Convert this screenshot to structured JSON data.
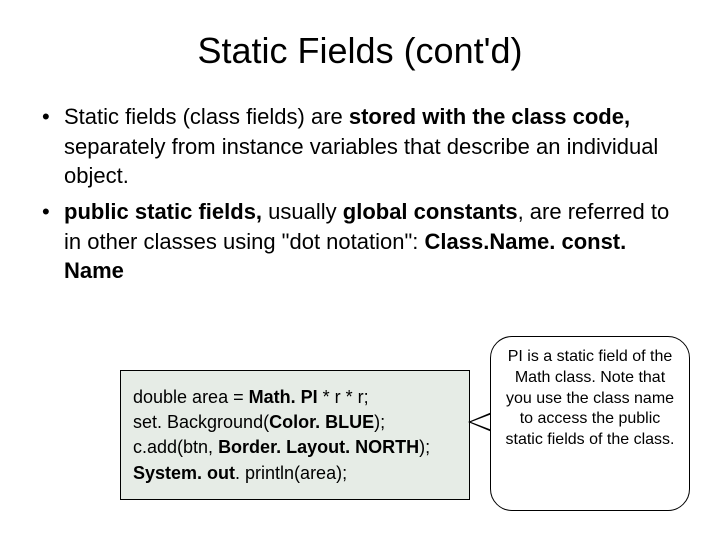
{
  "title": "Static Fields (cont'd)",
  "bullets": [
    {
      "pre": "Static fields (class fields) are ",
      "bold1": "stored with the class code,",
      "mid": " separately from instance variables that describe an individual object.",
      "bold2": "",
      "post": ""
    },
    {
      "pre": "",
      "bold1": "public static fields,",
      "mid": " usually ",
      "bold2": "global constants",
      "post": ", are referred to in other classes using \"dot notation\": ",
      "bold3": "Class.Name. const. Name"
    }
  ],
  "code": {
    "l1a": "double area = ",
    "l1b": "Math. PI",
    "l1c": " * r * r;",
    "l2a": "set. Background(",
    "l2b": "Color. BLUE",
    "l2c": ");",
    "l3a": "c.add(btn, ",
    "l3b": "Border. Layout. NORTH",
    "l3c": ");",
    "l4a": "System. out",
    "l4b": ". println(area);"
  },
  "callout": "PI is a static field of the Math class. Note that you use the class name to access the public static fields of the class.",
  "style": {
    "background": "#ffffff",
    "codebox_bg": "#e6ece6",
    "border_color": "#000000",
    "title_fontsize": 36,
    "bullet_fontsize": 22,
    "code_fontsize": 18,
    "callout_fontsize": 16
  }
}
